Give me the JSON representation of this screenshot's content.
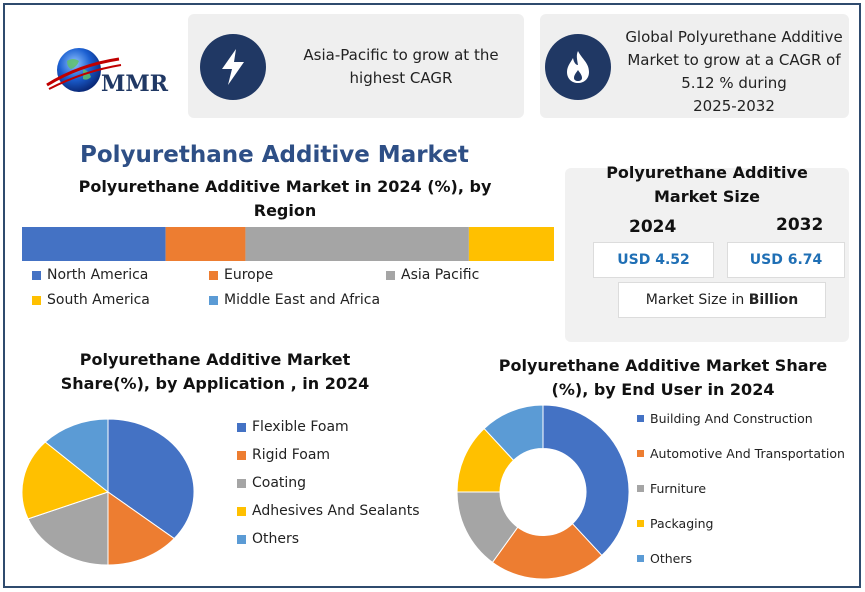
{
  "logo": {
    "text": "MMR"
  },
  "cards": [
    {
      "icon": "lightning-icon",
      "text_lines": [
        "Asia-Pacific to grow at the",
        "highest CAGR"
      ]
    },
    {
      "icon": "flame-icon",
      "text_lines": [
        "Global Polyurethane Additive",
        "Market to grow at a CAGR of",
        "5.12 % during",
        "2025-2032"
      ]
    }
  ],
  "page_title": "Polyurethane Additive Market",
  "market_size": {
    "title_lines": [
      "Polyurethane Additive",
      "Market Size"
    ],
    "year1": "2024",
    "year2": "2032",
    "value1": "USD 4.52",
    "value2": "USD 6.74",
    "unit_prefix": "Market Size in ",
    "unit_bold": "Billion"
  },
  "colors": {
    "blue": "#4472c4",
    "orange": "#ed7d31",
    "gray": "#a5a5a5",
    "yellow": "#ffc000",
    "lightblue": "#5b9bd5",
    "navy": "#203864",
    "title": "#2e4f86"
  },
  "chart_data": [
    {
      "type": "bar",
      "orientation": "horizontal-stacked",
      "title_lines": [
        "Polyurethane Additive Market  in 2024 (%), by",
        "Region"
      ],
      "categories": [
        "North America",
        "Europe",
        "Asia Pacific",
        "South America",
        "Middle East and Africa"
      ],
      "values": [
        27,
        15,
        42,
        16,
        0
      ],
      "legend_position": "bottom"
    },
    {
      "type": "pie",
      "title_lines": [
        "Polyurethane Additive Market",
        "Share(%), by Application , in 2024"
      ],
      "categories": [
        "Flexible Foam",
        "Rigid Foam",
        "Coating",
        "Adhesives And Sealants",
        "Others"
      ],
      "values": [
        36,
        14,
        19,
        18,
        13
      ],
      "legend_position": "right"
    },
    {
      "type": "pie",
      "style": "donut",
      "title_lines": [
        "Polyurethane Additive Market  Share",
        "(%), by End User  in 2024"
      ],
      "categories": [
        "Building And Construction",
        "Automotive And Transportation",
        "Furniture",
        "Packaging",
        "Others"
      ],
      "values": [
        38,
        22,
        15,
        13,
        12
      ],
      "legend_position": "right"
    }
  ]
}
